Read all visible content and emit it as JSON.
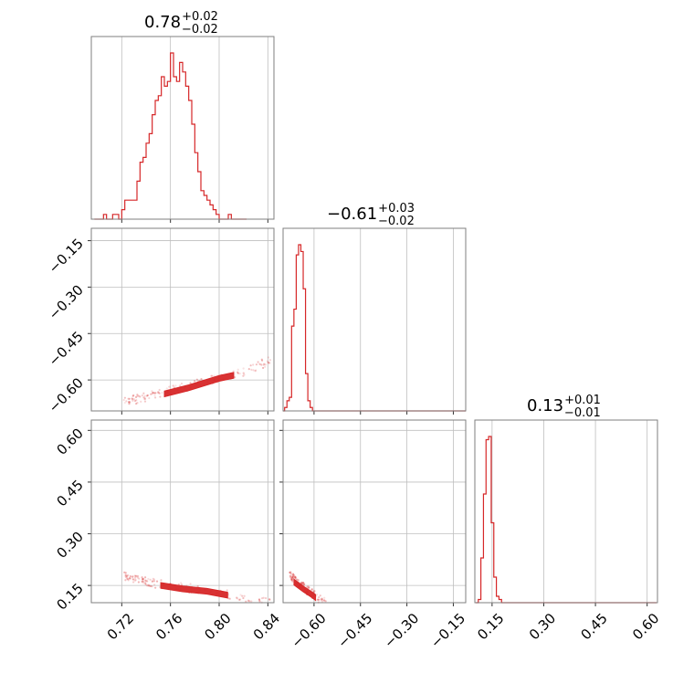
{
  "chart_data": {
    "type": "corner",
    "color": "#d62728",
    "parameters": [
      {
        "median_label": "0.78",
        "plus": "+0.02",
        "minus": "−0.02",
        "range": [
          0.695,
          0.845
        ],
        "ticks": [
          0.72,
          0.76,
          0.8,
          0.84
        ],
        "tick_labels": [
          "0.72",
          "0.76",
          "0.80",
          "0.84"
        ]
      },
      {
        "median_label": "−0.61",
        "plus": "+0.03",
        "minus": "−0.02",
        "range": [
          -0.7,
          -0.11
        ],
        "ticks": [
          -0.6,
          -0.45,
          -0.3,
          -0.15
        ],
        "tick_labels": [
          "−0.60",
          "−0.45",
          "−0.30",
          "−0.15"
        ]
      },
      {
        "median_label": "0.13",
        "plus": "+0.01",
        "minus": "−0.01",
        "range": [
          0.1,
          0.63
        ],
        "ticks": [
          0.15,
          0.3,
          0.45,
          0.6
        ],
        "tick_labels": [
          "0.15",
          "0.30",
          "0.45",
          "0.60"
        ]
      }
    ],
    "histograms": [
      {
        "param": 0,
        "x_start": 0.6975,
        "bin_width": 0.0025,
        "counts": [
          0,
          0,
          0,
          1,
          0,
          0,
          1,
          1,
          0,
          2,
          4,
          4,
          4,
          4,
          8,
          12,
          13,
          16,
          18,
          22,
          25,
          26,
          30,
          28,
          29,
          35,
          30,
          29,
          33,
          31,
          28,
          25,
          20,
          14,
          10,
          6,
          5,
          4,
          3,
          2,
          1,
          0,
          0,
          0,
          1,
          0,
          0,
          0,
          0,
          0
        ]
      },
      {
        "param": 1,
        "x_start": -0.7025,
        "bin_width": 0.0075,
        "counts": [
          0,
          1,
          3,
          4,
          25,
          30,
          46,
          49,
          47,
          36,
          11,
          3,
          1,
          0,
          0,
          0,
          0,
          0,
          0,
          0,
          0,
          0,
          0,
          0,
          0,
          0,
          0,
          0,
          0,
          0,
          0,
          0,
          0,
          0,
          0,
          0,
          0,
          0,
          0,
          0,
          0,
          0,
          0,
          0,
          0,
          0,
          0,
          0,
          0,
          0,
          0,
          0,
          0,
          0,
          0,
          0,
          0,
          0,
          0,
          0,
          0,
          0,
          0,
          0,
          0,
          0,
          0,
          0,
          0,
          0,
          0,
          0,
          0,
          0,
          0,
          0,
          0,
          0,
          0
        ]
      },
      {
        "param": 2,
        "x_start": 0.1025,
        "bin_width": 0.0075,
        "counts": [
          0,
          1,
          14,
          34,
          51,
          52,
          25,
          8,
          2,
          1,
          0,
          0,
          0,
          0,
          0,
          0,
          0,
          0,
          0,
          0,
          0,
          0,
          0,
          0,
          0,
          0,
          0,
          0,
          0,
          0,
          0,
          0,
          0,
          0,
          0,
          0,
          0,
          0,
          0,
          0,
          0,
          0,
          0,
          0,
          0,
          0,
          0,
          0,
          0,
          0,
          0,
          0,
          0,
          0,
          0,
          0,
          0,
          0,
          0,
          0,
          0,
          0,
          0,
          0,
          0,
          0,
          0,
          0,
          0,
          0
        ]
      }
    ],
    "scatter_2d": [
      {
        "x_param": 0,
        "y_param": 1,
        "trend": [
          [
            0.7,
            -0.69
          ],
          [
            0.74,
            -0.655
          ],
          [
            0.78,
            -0.615
          ],
          [
            0.82,
            -0.575
          ],
          [
            0.843,
            -0.535
          ]
        ],
        "core": [
          [
            0.755,
            -0.645
          ],
          [
            0.775,
            -0.625
          ],
          [
            0.8,
            -0.595
          ],
          [
            0.812,
            -0.585
          ]
        ]
      },
      {
        "x_param": 0,
        "y_param": 2,
        "trend": [
          [
            0.7,
            0.195
          ],
          [
            0.74,
            0.16
          ],
          [
            0.78,
            0.14
          ],
          [
            0.82,
            0.115
          ],
          [
            0.843,
            0.1
          ]
        ],
        "core": [
          [
            0.752,
            0.15
          ],
          [
            0.77,
            0.14
          ],
          [
            0.79,
            0.133
          ],
          [
            0.807,
            0.122
          ]
        ]
      },
      {
        "x_param": 1,
        "y_param": 2,
        "trend": [
          [
            -0.7,
            0.195
          ],
          [
            -0.66,
            0.165
          ],
          [
            -0.62,
            0.135
          ],
          [
            -0.58,
            0.11
          ],
          [
            -0.56,
            0.1
          ]
        ],
        "core": [
          [
            -0.665,
            0.16
          ],
          [
            -0.635,
            0.14
          ],
          [
            -0.61,
            0.125
          ],
          [
            -0.595,
            0.115
          ]
        ]
      }
    ],
    "grid": true
  }
}
